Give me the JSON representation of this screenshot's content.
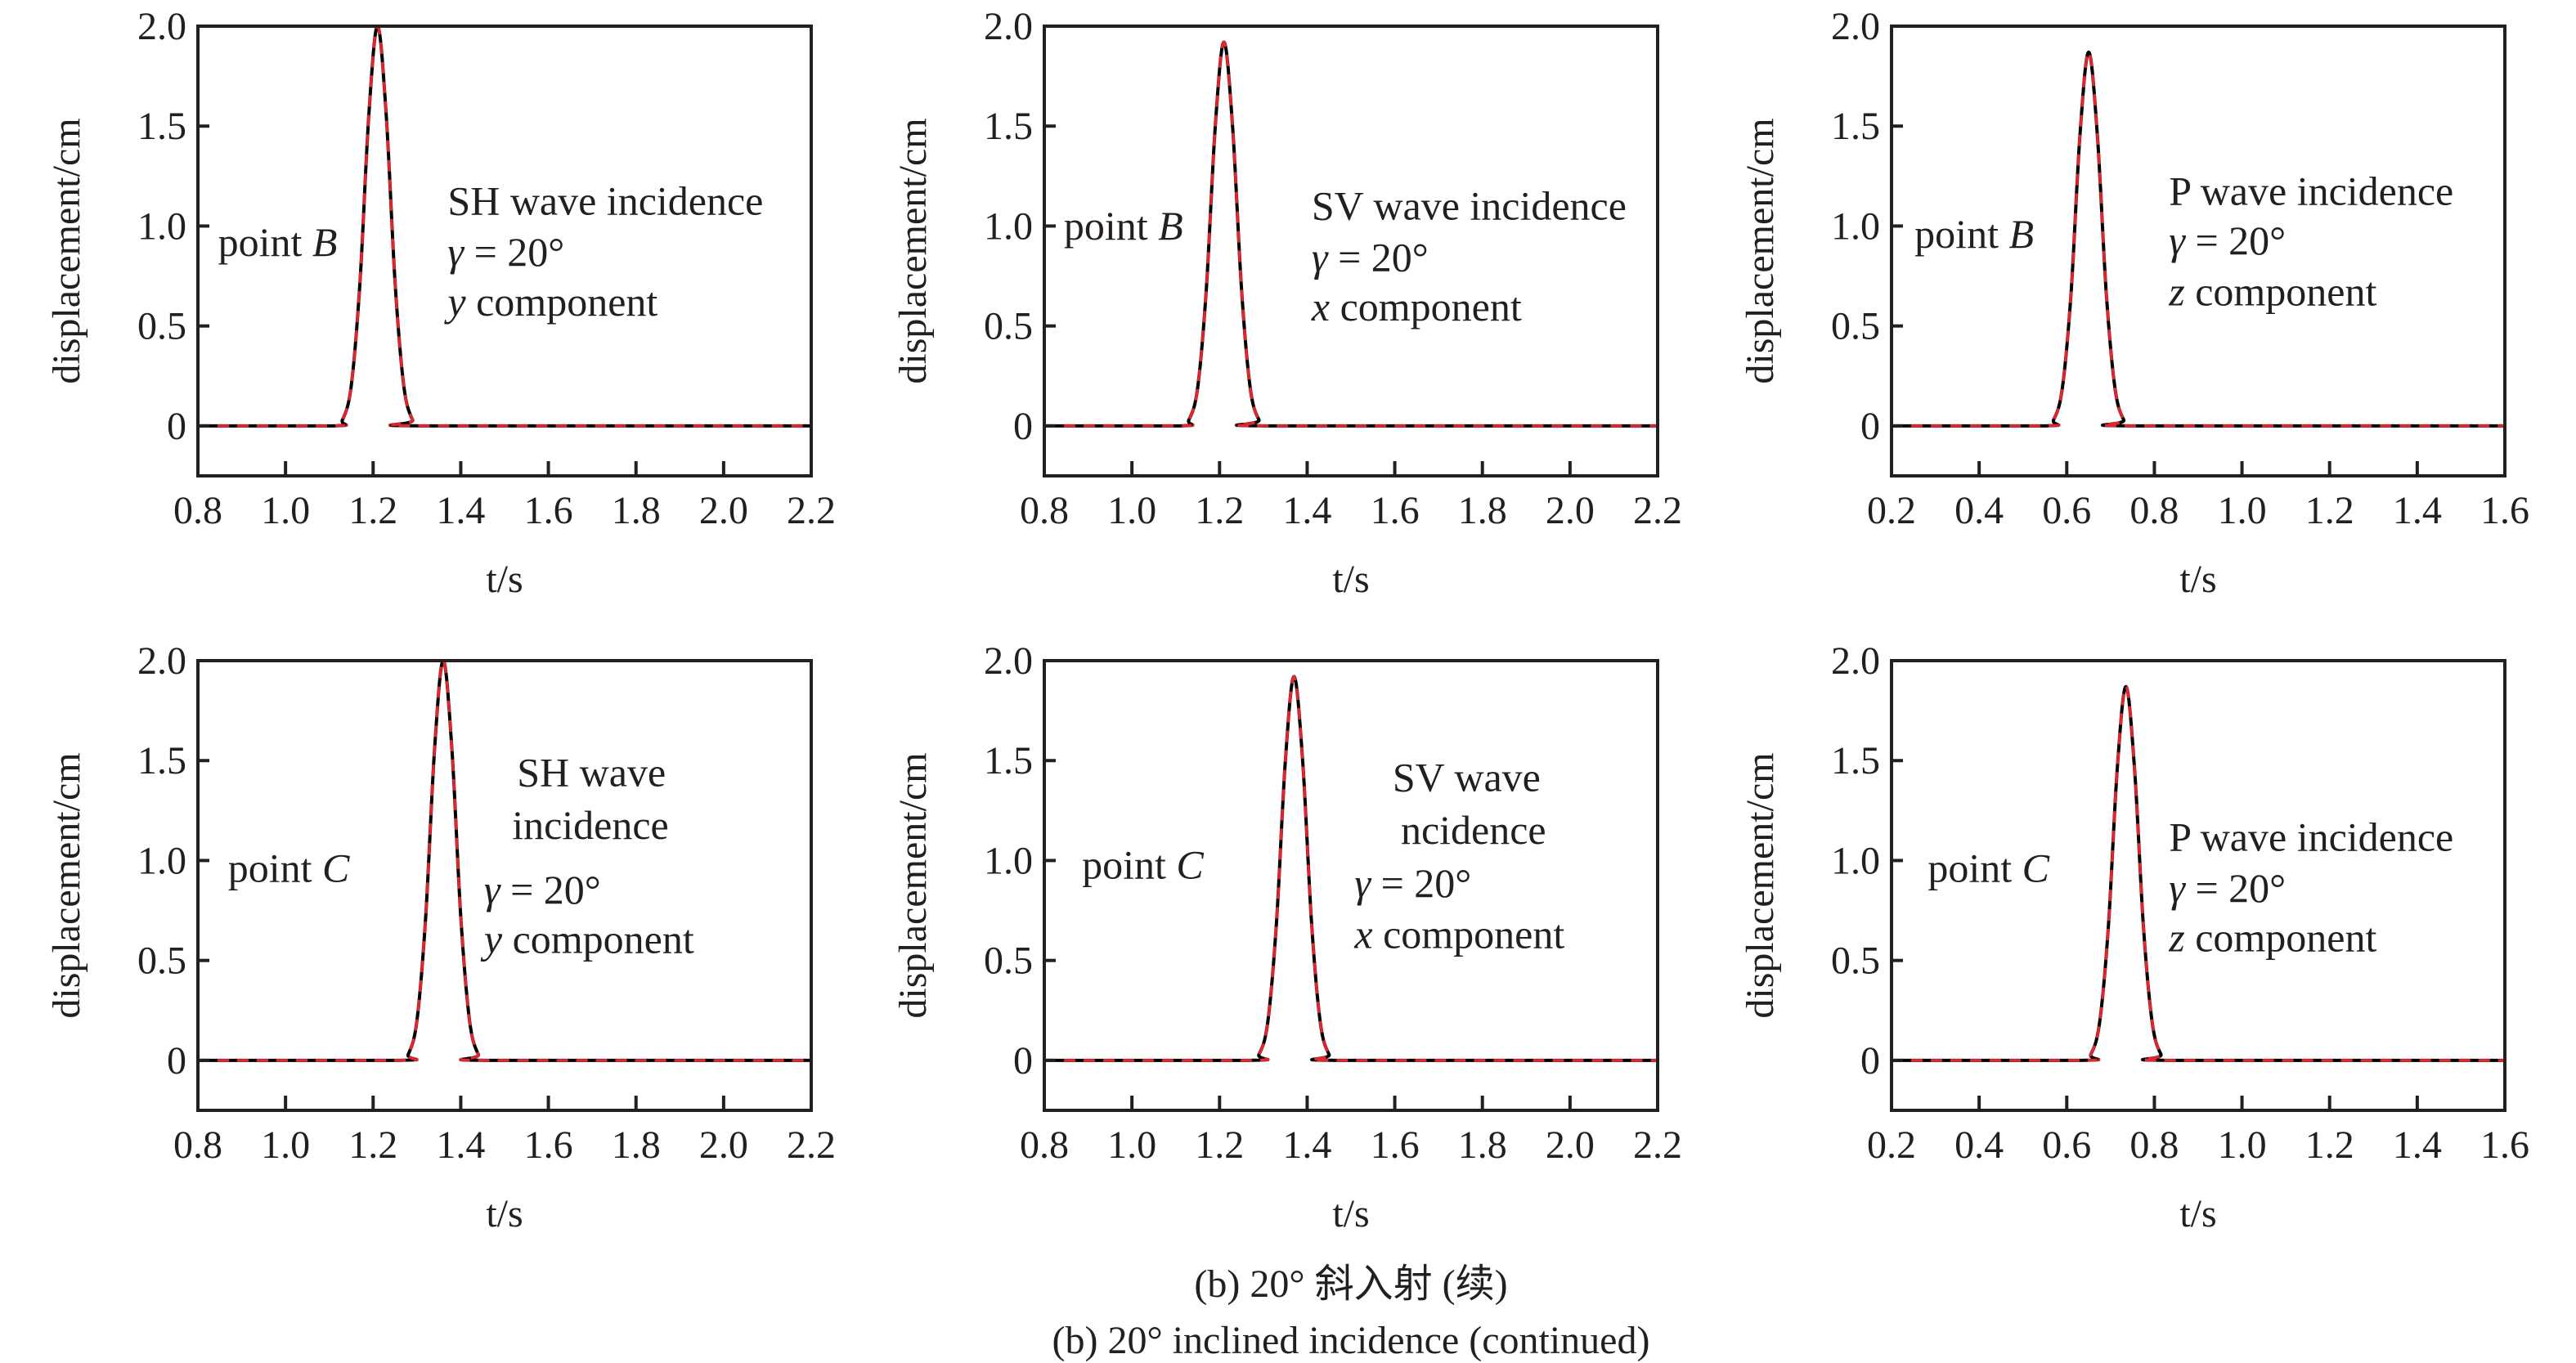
{
  "caption": {
    "line1": "(b) 20° 斜入射 (续)",
    "line2": "(b) 20° inclined incidence (continued)"
  },
  "chart_data": [
    {
      "type": "line",
      "xlabel": "t/s",
      "ylabel": "displacement/cm",
      "xlim": [
        0.8,
        2.2
      ],
      "ylim": [
        -0.25,
        2.0
      ],
      "xticks": [
        "0.8",
        "1.0",
        "1.2",
        "1.4",
        "1.6",
        "1.8",
        "2.0",
        "2.2"
      ],
      "yticks": [
        "0",
        "0.5",
        "1.0",
        "1.5",
        "2.0"
      ],
      "point_label": "point B",
      "annotation": [
        "SH wave incidence",
        "γ = 20°",
        "y component"
      ],
      "x": [
        0.8,
        1.11,
        1.13,
        1.15,
        1.17,
        1.19,
        1.21,
        1.23,
        1.25,
        1.27,
        1.29,
        1.31,
        2.2
      ],
      "y": [
        0,
        0,
        0.03,
        0.2,
        0.72,
        1.55,
        2.0,
        1.55,
        0.72,
        0.2,
        0.03,
        0,
        0
      ],
      "series": [
        {
          "color": "#000000",
          "line": "solid"
        },
        {
          "color": "#e3262e",
          "line": "dashed"
        }
      ]
    },
    {
      "type": "line",
      "xlabel": "t/s",
      "ylabel": "displacement/cm",
      "xlim": [
        0.8,
        2.2
      ],
      "ylim": [
        -0.25,
        2.0
      ],
      "xticks": [
        "0.8",
        "1.0",
        "1.2",
        "1.4",
        "1.6",
        "1.8",
        "2.0",
        "2.2"
      ],
      "yticks": [
        "0",
        "0.5",
        "1.0",
        "1.5",
        "2.0"
      ],
      "point_label": "point B",
      "annotation": [
        "SV wave incidence",
        "γ = 20°",
        "x component"
      ],
      "x": [
        0.8,
        1.11,
        1.13,
        1.15,
        1.17,
        1.19,
        1.21,
        1.23,
        1.25,
        1.27,
        1.29,
        1.31,
        2.2
      ],
      "y": [
        0,
        0,
        0.03,
        0.19,
        0.69,
        1.49,
        1.92,
        1.49,
        0.69,
        0.19,
        0.03,
        0,
        0
      ],
      "series": [
        {
          "color": "#000000",
          "line": "solid"
        },
        {
          "color": "#e3262e",
          "line": "dashed"
        }
      ]
    },
    {
      "type": "line",
      "xlabel": "t/s",
      "ylabel": "displacement/cm",
      "xlim": [
        0.2,
        1.6
      ],
      "ylim": [
        -0.25,
        2.0
      ],
      "xticks": [
        "0.2",
        "0.4",
        "0.6",
        "0.8",
        "1.0",
        "1.2",
        "1.4",
        "1.6"
      ],
      "yticks": [
        "0",
        "0.5",
        "1.0",
        "1.5",
        "2.0"
      ],
      "point_label": "point B",
      "annotation": [
        "P wave incidence",
        "γ = 20°",
        "z component"
      ],
      "x": [
        0.2,
        0.55,
        0.57,
        0.59,
        0.61,
        0.63,
        0.65,
        0.67,
        0.69,
        0.71,
        0.73,
        0.75,
        1.6
      ],
      "y": [
        0,
        0,
        0.03,
        0.19,
        0.67,
        1.45,
        1.87,
        1.45,
        0.67,
        0.19,
        0.03,
        0,
        0
      ],
      "series": [
        {
          "color": "#000000",
          "line": "solid"
        },
        {
          "color": "#e3262e",
          "line": "dashed"
        }
      ]
    },
    {
      "type": "line",
      "xlabel": "t/s",
      "ylabel": "displacement/cm",
      "xlim": [
        0.8,
        2.2
      ],
      "ylim": [
        -0.25,
        2.0
      ],
      "xticks": [
        "0.8",
        "1.0",
        "1.2",
        "1.4",
        "1.6",
        "1.8",
        "2.0",
        "2.2"
      ],
      "yticks": [
        "0",
        "0.5",
        "1.0",
        "1.5",
        "2.0"
      ],
      "point_label": "point C",
      "annotation": [
        "SH wave",
        "incidence",
        "γ = 20°",
        "y component"
      ],
      "x": [
        0.8,
        1.26,
        1.28,
        1.3,
        1.32,
        1.34,
        1.36,
        1.38,
        1.4,
        1.42,
        1.44,
        1.46,
        2.2
      ],
      "y": [
        0,
        0,
        0.03,
        0.2,
        0.72,
        1.55,
        2.0,
        1.55,
        0.72,
        0.2,
        0.03,
        0,
        0
      ],
      "series": [
        {
          "color": "#000000",
          "line": "solid"
        },
        {
          "color": "#e3262e",
          "line": "dashed"
        }
      ]
    },
    {
      "type": "line",
      "xlabel": "t/s",
      "ylabel": "displacement/cm",
      "xlim": [
        0.8,
        2.2
      ],
      "ylim": [
        -0.25,
        2.0
      ],
      "xticks": [
        "0.8",
        "1.0",
        "1.2",
        "1.4",
        "1.6",
        "1.8",
        "2.0",
        "2.2"
      ],
      "yticks": [
        "0",
        "0.5",
        "1.0",
        "1.5",
        "2.0"
      ],
      "point_label": "point C",
      "annotation": [
        "SV wave",
        "ncidence",
        "γ = 20°",
        "x component"
      ],
      "x": [
        0.8,
        1.27,
        1.29,
        1.31,
        1.33,
        1.35,
        1.37,
        1.39,
        1.41,
        1.43,
        1.45,
        1.47,
        2.2
      ],
      "y": [
        0,
        0,
        0.03,
        0.19,
        0.69,
        1.49,
        1.92,
        1.49,
        0.69,
        0.19,
        0.03,
        0,
        0
      ],
      "series": [
        {
          "color": "#000000",
          "line": "solid"
        },
        {
          "color": "#e3262e",
          "line": "dashed"
        }
      ]
    },
    {
      "type": "line",
      "xlabel": "t/s",
      "ylabel": "displacement/cm",
      "xlim": [
        0.2,
        1.6
      ],
      "ylim": [
        -0.25,
        2.0
      ],
      "xticks": [
        "0.2",
        "0.4",
        "0.6",
        "0.8",
        "1.0",
        "1.2",
        "1.4",
        "1.6"
      ],
      "yticks": [
        "0",
        "0.5",
        "1.0",
        "1.5",
        "2.0"
      ],
      "point_label": "point C",
      "annotation": [
        "P wave incidence",
        "γ = 20°",
        "z component"
      ],
      "x": [
        0.2,
        0.635,
        0.655,
        0.675,
        0.695,
        0.715,
        0.735,
        0.755,
        0.775,
        0.795,
        0.815,
        0.835,
        1.6
      ],
      "y": [
        0,
        0,
        0.03,
        0.19,
        0.67,
        1.45,
        1.87,
        1.45,
        0.67,
        0.19,
        0.03,
        0,
        0
      ],
      "series": [
        {
          "color": "#000000",
          "line": "solid"
        },
        {
          "color": "#e3262e",
          "line": "dashed"
        }
      ]
    }
  ]
}
